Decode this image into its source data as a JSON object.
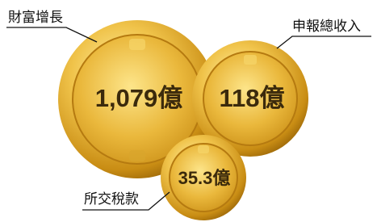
{
  "items": [
    {
      "label": "財富增長",
      "value": "1,079億"
    },
    {
      "label": "申報總收入",
      "value": "118億"
    },
    {
      "label": "所交稅款",
      "value": "35.3億"
    }
  ]
}
